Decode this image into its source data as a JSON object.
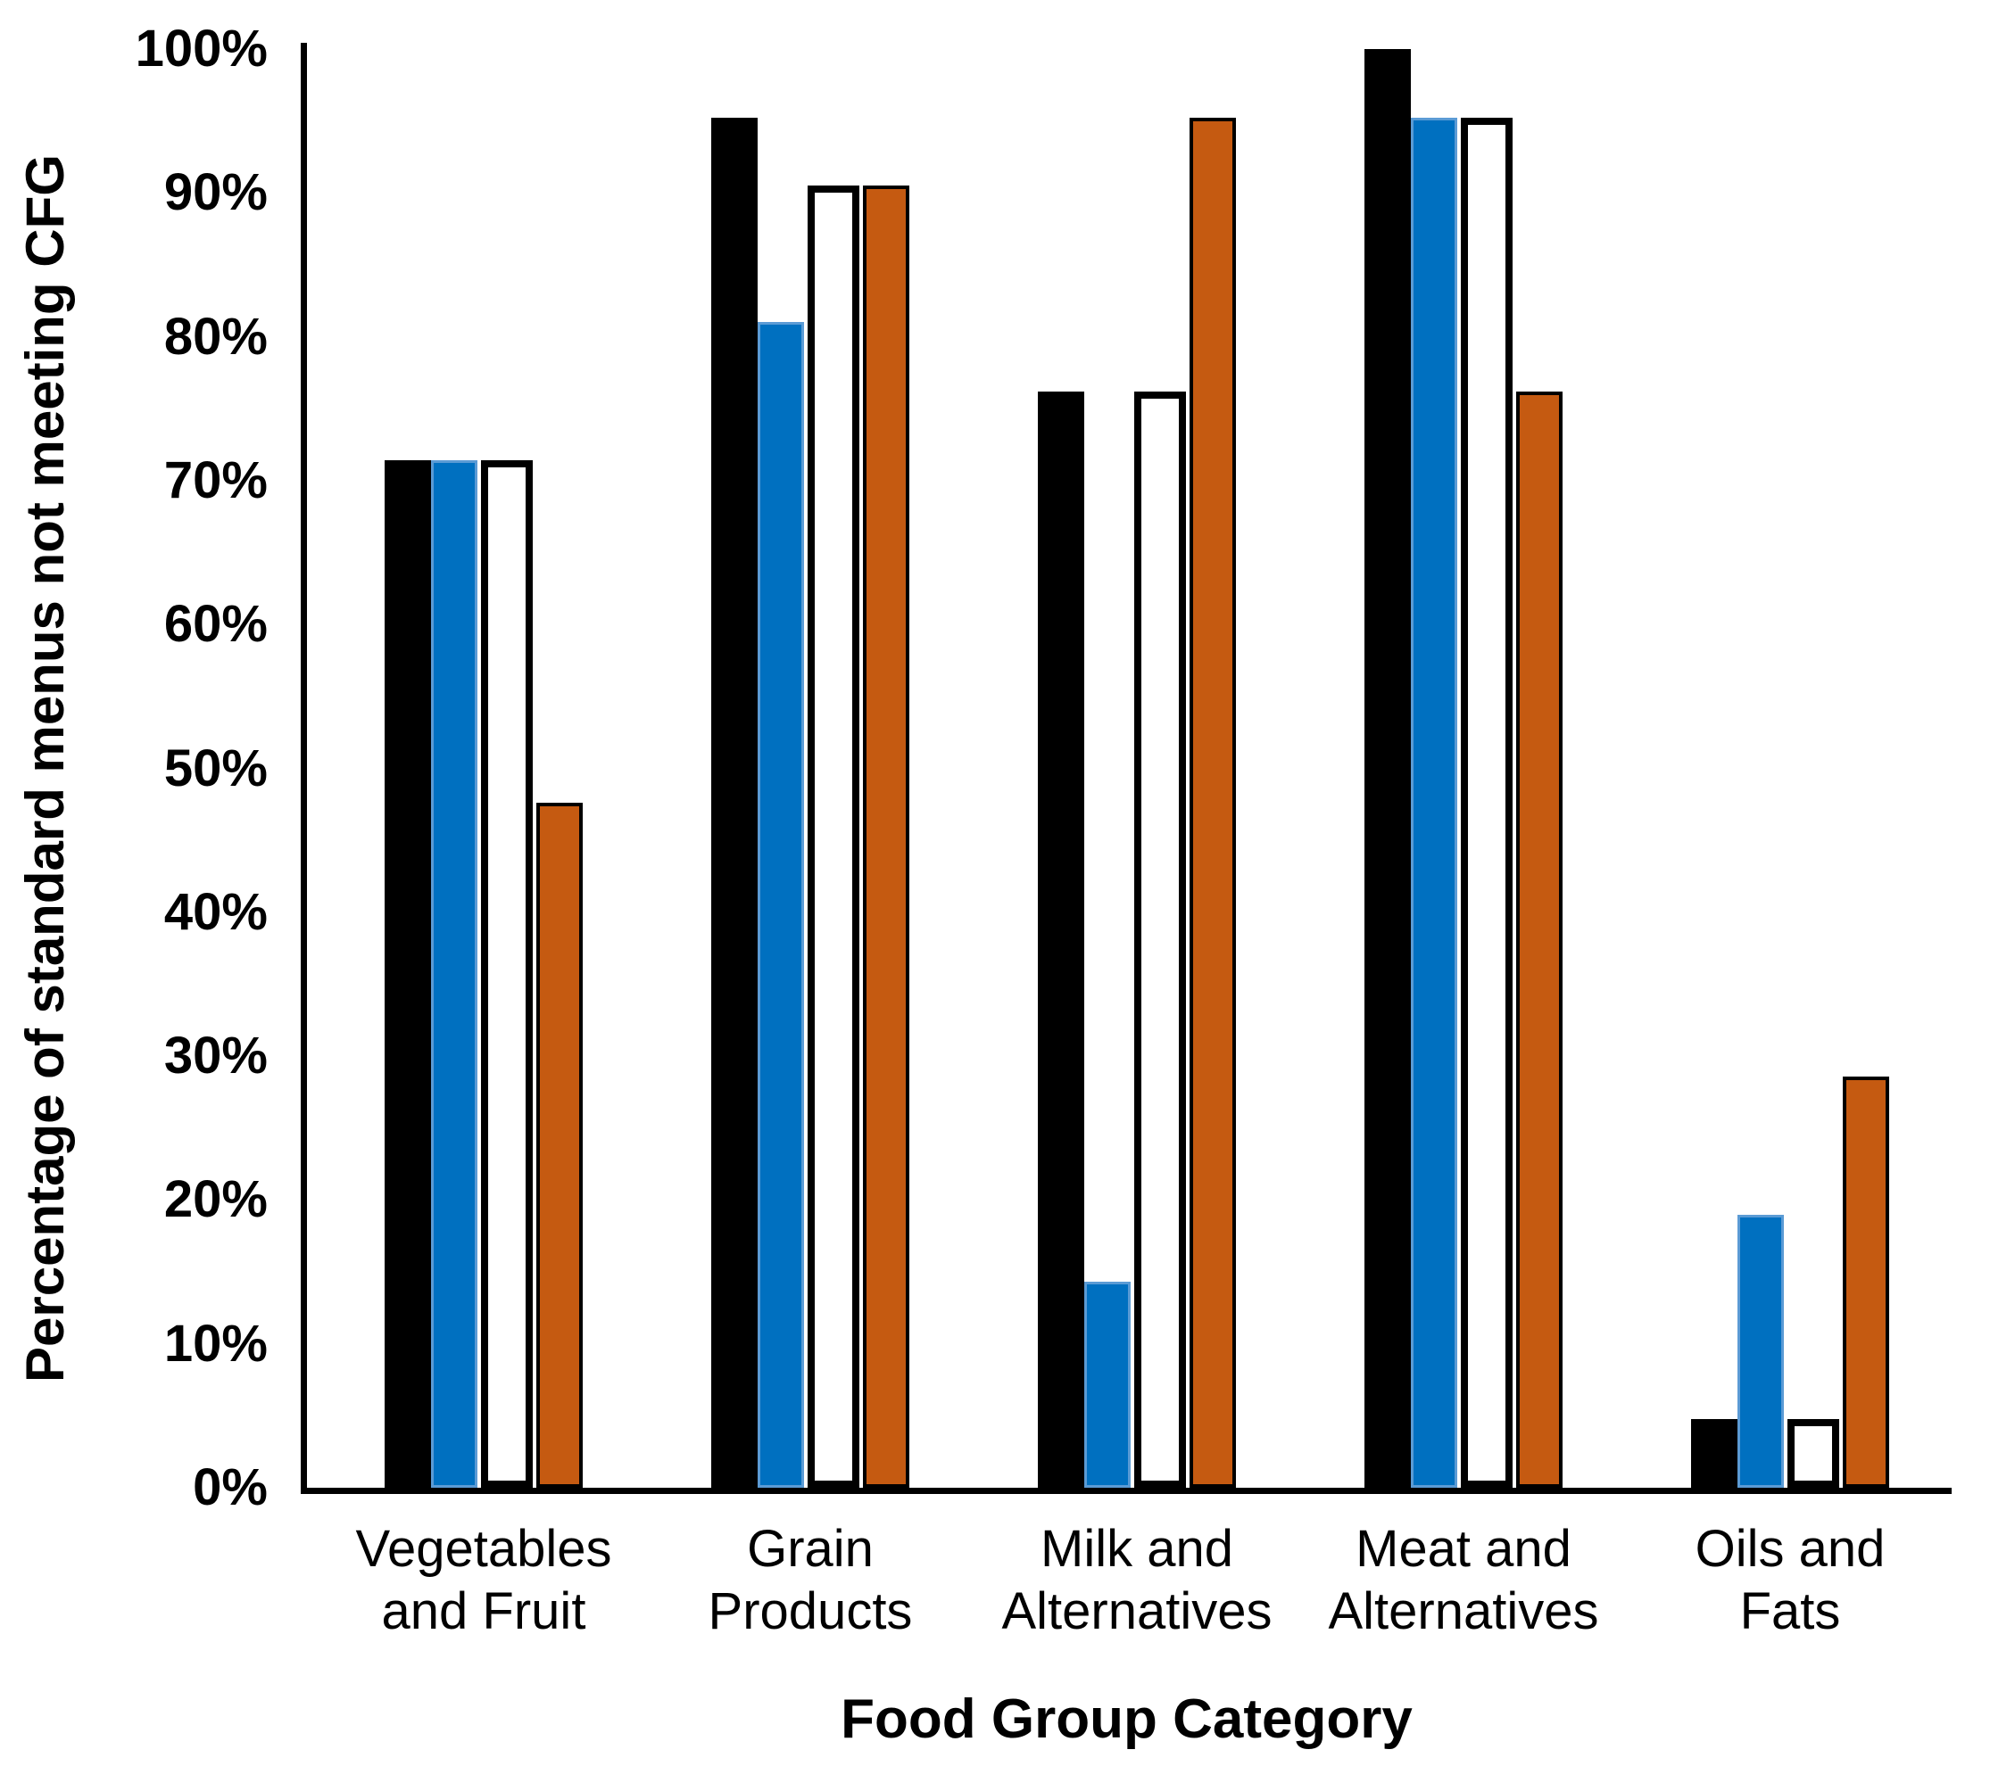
{
  "chart_data": {
    "type": "bar",
    "title": "",
    "xlabel": "Food Group Category",
    "ylabel": "Percentage of standard menus not meeting CFG",
    "categories": [
      "Vegetables and Fruit",
      "Grain Products",
      "Milk and Alternatives",
      "Meat and Alternatives",
      "Oils and Fats"
    ],
    "category_label_lines": [
      [
        "Vegetables",
        "and Fruit"
      ],
      [
        "Grain",
        "Products"
      ],
      [
        "Milk and",
        "Alternatives"
      ],
      [
        "Meat and",
        "Alternatives"
      ],
      [
        "Oils and",
        "Fats"
      ]
    ],
    "series": [
      {
        "name": "black",
        "fill": "#000000",
        "border": "#000000",
        "border_px": 0,
        "values": [
          71.4,
          95.2,
          76.2,
          100.0,
          4.8
        ]
      },
      {
        "name": "blue",
        "fill": "#0070C0",
        "border": "#5B9BD5",
        "border_px": 3,
        "values": [
          71.4,
          81.0,
          14.3,
          95.2,
          19.0
        ]
      },
      {
        "name": "white",
        "fill": "#FFFFFF",
        "border": "#000000",
        "border_px": 8,
        "values": [
          71.4,
          90.5,
          76.2,
          95.2,
          4.8
        ]
      },
      {
        "name": "orange",
        "fill": "#C55A11",
        "border": "#000000",
        "border_px": 4,
        "values": [
          47.6,
          90.5,
          95.2,
          76.2,
          28.6
        ]
      }
    ],
    "y_ticks": [
      "0%",
      "10%",
      "20%",
      "30%",
      "40%",
      "50%",
      "60%",
      "70%",
      "80%",
      "90%",
      "100%"
    ],
    "ylim": [
      0,
      100
    ],
    "grid": "off",
    "legend": "none",
    "axis_color": "#000000"
  }
}
